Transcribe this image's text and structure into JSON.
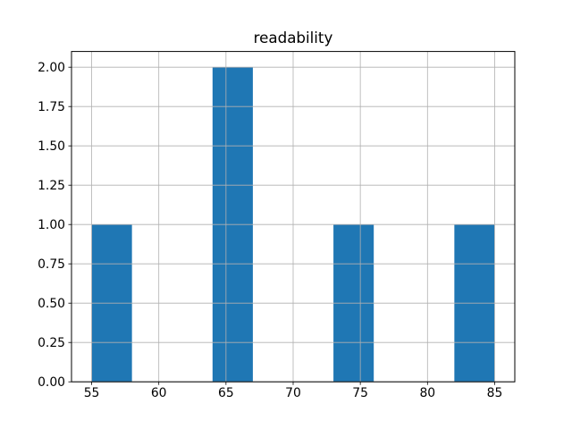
{
  "chart_data": {
    "type": "bar",
    "subtype": "histogram",
    "title": "readability",
    "xlabel": "",
    "ylabel": "",
    "bin_edges": [
      55,
      58,
      61,
      64,
      67,
      70,
      73,
      76,
      79,
      82,
      85
    ],
    "counts": [
      1,
      0,
      0,
      2,
      0,
      0,
      1,
      0,
      0,
      1
    ],
    "x_ticks": [
      55,
      60,
      65,
      70,
      75,
      80,
      85
    ],
    "x_tick_labels": [
      "55",
      "60",
      "65",
      "70",
      "75",
      "80",
      "85"
    ],
    "y_ticks": [
      0,
      0.25,
      0.5,
      0.75,
      1.0,
      1.25,
      1.5,
      1.75,
      2.0
    ],
    "y_tick_labels": [
      "0.00",
      "0.25",
      "0.50",
      "0.75",
      "1.00",
      "1.25",
      "1.50",
      "1.75",
      "2.00"
    ],
    "xlim": [
      53.5,
      86.5
    ],
    "ylim": [
      0,
      2.1
    ],
    "grid": true,
    "grid_above_bars": true,
    "legend_position": "none",
    "bar_color": "#1f77b4",
    "grid_color": "#b0b0b0",
    "axis_color": "#000000",
    "text_color": "#000000",
    "background_color": "#ffffff"
  }
}
